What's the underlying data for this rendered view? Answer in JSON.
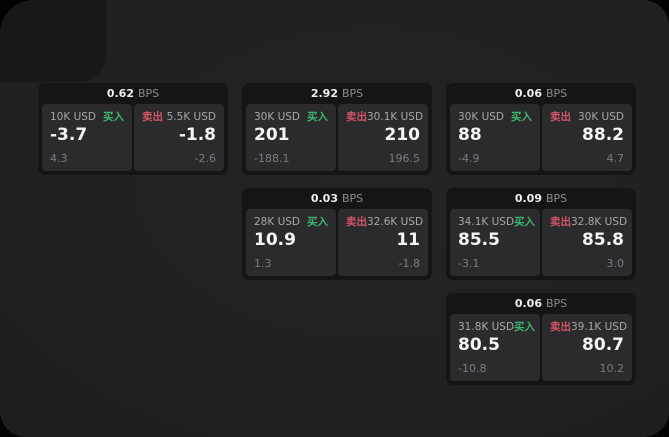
{
  "labels": {
    "bps": "BPS",
    "buy": "买入",
    "sell": "卖出"
  },
  "colors": {
    "accent_buy": "#3cb46e",
    "accent_sell": "#d15467",
    "card_bg": "#151516",
    "cell_bg": "#2b2b2d"
  },
  "cards": [
    {
      "col": 1,
      "row": 1,
      "bps": "0.62",
      "buy": {
        "amount": "10K USD",
        "value": "-3.7",
        "change": "4.3"
      },
      "sell": {
        "amount": "5.5K USD",
        "value": "-1.8",
        "change": "-2.6"
      }
    },
    {
      "col": 2,
      "row": 1,
      "bps": "2.92",
      "buy": {
        "amount": "30K USD",
        "value": "201",
        "change": "-188.1"
      },
      "sell": {
        "amount": "30.1K USD",
        "value": "210",
        "change": "196.5"
      }
    },
    {
      "col": 3,
      "row": 1,
      "bps": "0.06",
      "buy": {
        "amount": "30K USD",
        "value": "88",
        "change": "-4.9"
      },
      "sell": {
        "amount": "30K USD",
        "value": "88.2",
        "change": "4.7"
      }
    },
    {
      "col": 2,
      "row": 2,
      "bps": "0.03",
      "buy": {
        "amount": "28K USD",
        "value": "10.9",
        "change": "1.3"
      },
      "sell": {
        "amount": "32.6K USD",
        "value": "11",
        "change": "-1.8"
      }
    },
    {
      "col": 3,
      "row": 2,
      "bps": "0.09",
      "buy": {
        "amount": "34.1K USD",
        "value": "85.5",
        "change": "-3.1"
      },
      "sell": {
        "amount": "32.8K USD",
        "value": "85.8",
        "change": "3.0"
      }
    },
    {
      "col": 3,
      "row": 3,
      "bps": "0.06",
      "buy": {
        "amount": "31.8K USD",
        "value": "80.5",
        "change": "-10.8"
      },
      "sell": {
        "amount": "39.1K USD",
        "value": "80.7",
        "change": "10.2"
      }
    }
  ]
}
